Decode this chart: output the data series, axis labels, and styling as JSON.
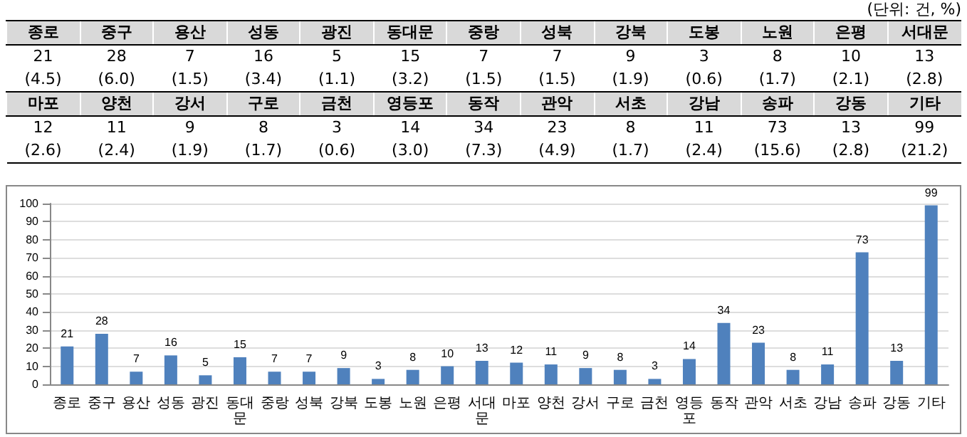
{
  "chart_data": [
    {
      "type": "other",
      "title": "(단위: 건, %)",
      "categories": [
        "종로",
        "중구",
        "용산",
        "성동",
        "광진",
        "동대문",
        "중랑",
        "성북",
        "강북",
        "도봉",
        "노원",
        "은평",
        "서대문",
        "마포",
        "양천",
        "강서",
        "구로",
        "금천",
        "영등포",
        "동작",
        "관악",
        "서초",
        "강남",
        "송파",
        "강동",
        "기타"
      ],
      "annotations": [
        "21",
        "28",
        "7",
        "16",
        "5",
        "15",
        "7",
        "7",
        "9",
        "3",
        "8",
        "10",
        "13",
        "12",
        "11",
        "9",
        "8",
        "3",
        "14",
        "34",
        "23",
        "8",
        "11",
        "73",
        "13",
        "99",
        "(4.5)",
        "(6.0)",
        "(1.5)",
        "(3.4)",
        "(1.1)",
        "(3.2)",
        "(1.5)",
        "(1.5)",
        "(1.9)",
        "(0.6)",
        "(1.7)",
        "(2.1)",
        "(2.8)",
        "(2.6)",
        "(2.4)",
        "(1.9)",
        "(1.7)",
        "(0.6)",
        "(3.0)",
        "(7.3)",
        "(4.9)",
        "(1.7)",
        "(2.4)",
        "(15.6)",
        "(2.8)",
        "(21.2)"
      ]
    },
    {
      "type": "bar",
      "categories": [
        "종로",
        "중구",
        "용산",
        "성동",
        "광진",
        "동대문",
        "중랑",
        "성북",
        "강북",
        "도봉",
        "노원",
        "은평",
        "서대문",
        "마포",
        "양천",
        "강서",
        "구로",
        "금천",
        "영등포",
        "동작",
        "관악",
        "서초",
        "강남",
        "송파",
        "강동",
        "기타"
      ],
      "values": [
        21,
        28,
        7,
        16,
        5,
        15,
        7,
        7,
        9,
        3,
        8,
        10,
        13,
        12,
        11,
        9,
        8,
        3,
        14,
        34,
        23,
        8,
        11,
        73,
        13,
        99
      ],
      "color": "#4f81bd",
      "ylim": [
        0,
        100
      ],
      "yticks": [
        0,
        10,
        20,
        30,
        40,
        50,
        60,
        70,
        80,
        90,
        100
      ],
      "grid": "y",
      "data_labels": true
    }
  ]
}
